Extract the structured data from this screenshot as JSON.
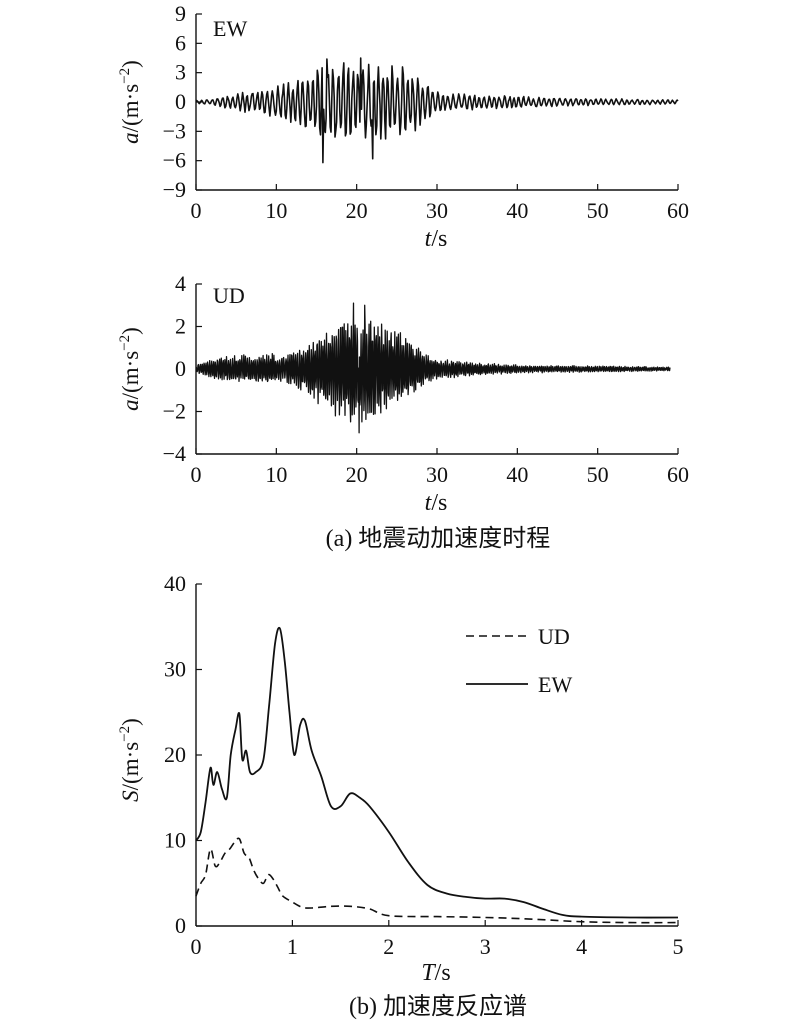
{
  "chart_data": [
    {
      "type": "line",
      "panel": "EW",
      "xlabel": "t/s",
      "ylabel": "a/(m·s⁻²)",
      "xlim": [
        0,
        60
      ],
      "ylim": [
        -9,
        9
      ],
      "xticks": [
        0,
        10,
        20,
        30,
        40,
        50,
        60
      ],
      "yticks": [
        9,
        6,
        3,
        0,
        -3,
        -6,
        -9
      ],
      "envelope": [
        [
          0,
          0.15
        ],
        [
          2,
          0.3
        ],
        [
          5,
          0.9
        ],
        [
          9,
          1.5
        ],
        [
          12,
          2.2
        ],
        [
          14,
          3.2
        ],
        [
          16,
          4.4
        ],
        [
          19,
          4.5
        ],
        [
          22,
          4.1
        ],
        [
          25,
          3.9
        ],
        [
          27,
          3.6
        ],
        [
          29,
          1.8
        ],
        [
          31,
          1.0
        ],
        [
          35,
          0.8
        ],
        [
          40,
          0.6
        ],
        [
          45,
          0.45
        ],
        [
          50,
          0.35
        ],
        [
          55,
          0.3
        ],
        [
          60,
          0.2
        ]
      ],
      "peaks": [
        {
          "t": 15.8,
          "a": -6.2
        },
        {
          "t": 16.3,
          "a": 4.4
        },
        {
          "t": 20.5,
          "a": 4.5
        },
        {
          "t": 22.0,
          "a": -5.8
        }
      ]
    },
    {
      "type": "line",
      "panel": "UD",
      "xlabel": "t/s",
      "ylabel": "a/(m·s⁻²)",
      "xlim": [
        0,
        60
      ],
      "ylim": [
        -4,
        4
      ],
      "xticks": [
        0,
        10,
        20,
        30,
        40,
        50,
        60
      ],
      "yticks": [
        4,
        2,
        0,
        -2,
        -4
      ],
      "envelope": [
        [
          0,
          0.2
        ],
        [
          3,
          0.6
        ],
        [
          8,
          0.8
        ],
        [
          11,
          0.7
        ],
        [
          14,
          1.3
        ],
        [
          16,
          1.9
        ],
        [
          19,
          2.6
        ],
        [
          21,
          3.0
        ],
        [
          23,
          2.3
        ],
        [
          26,
          1.6
        ],
        [
          28,
          0.9
        ],
        [
          30,
          0.5
        ],
        [
          35,
          0.3
        ],
        [
          40,
          0.2
        ],
        [
          50,
          0.15
        ],
        [
          59,
          0.1
        ]
      ],
      "peaks": [
        {
          "t": 19.6,
          "a": 3.1
        },
        {
          "t": 20.3,
          "a": -3.0
        },
        {
          "t": 21.0,
          "a": 3.0
        }
      ]
    },
    {
      "type": "line",
      "xlabel": "T/s",
      "ylabel": "S/(m·s⁻²)",
      "xlim": [
        0,
        5
      ],
      "ylim": [
        0,
        40
      ],
      "xticks": [
        0,
        1,
        2,
        3,
        4,
        5
      ],
      "yticks": [
        0,
        10,
        20,
        30,
        40
      ],
      "legend_position": "top-right",
      "series": [
        {
          "name": "UD",
          "style": "dashed",
          "x": [
            0,
            0.05,
            0.1,
            0.15,
            0.2,
            0.25,
            0.3,
            0.35,
            0.4,
            0.45,
            0.5,
            0.55,
            0.6,
            0.65,
            0.7,
            0.75,
            0.8,
            0.85,
            0.9,
            1.0,
            1.1,
            1.2,
            1.4,
            1.6,
            1.8,
            2.0,
            2.5,
            3.0,
            3.5,
            4.0,
            4.5,
            5.0
          ],
          "values": [
            3.5,
            5.0,
            6.0,
            9.0,
            7.0,
            7.5,
            8.5,
            9.0,
            9.8,
            10.2,
            8.5,
            8.0,
            6.5,
            5.5,
            5.0,
            6.0,
            5.5,
            4.5,
            3.5,
            2.8,
            2.2,
            2.1,
            2.3,
            2.3,
            2.0,
            1.2,
            1.1,
            1.0,
            0.8,
            0.5,
            0.4,
            0.4
          ]
        },
        {
          "name": "EW",
          "style": "solid",
          "x": [
            0,
            0.05,
            0.1,
            0.15,
            0.18,
            0.22,
            0.27,
            0.32,
            0.36,
            0.41,
            0.45,
            0.48,
            0.52,
            0.56,
            0.62,
            0.7,
            0.76,
            0.82,
            0.87,
            0.92,
            0.97,
            1.02,
            1.08,
            1.13,
            1.2,
            1.3,
            1.4,
            1.5,
            1.6,
            1.7,
            1.8,
            2.0,
            2.2,
            2.4,
            2.6,
            2.8,
            3.0,
            3.2,
            3.4,
            3.6,
            3.8,
            4.0,
            4.5,
            5.0
          ],
          "values": [
            10.0,
            11.0,
            14.5,
            18.5,
            16.5,
            18.0,
            16.0,
            15.0,
            20.0,
            23.0,
            24.8,
            19.5,
            20.5,
            18.0,
            18.0,
            19.5,
            26.0,
            33.0,
            34.8,
            31.0,
            25.0,
            20.0,
            23.5,
            24.0,
            20.5,
            17.5,
            14.0,
            14.0,
            15.5,
            15.0,
            14.0,
            11.0,
            7.5,
            4.8,
            3.8,
            3.4,
            3.2,
            3.2,
            2.8,
            2.0,
            1.3,
            1.1,
            1.0,
            1.0
          ]
        }
      ]
    }
  ],
  "labels": {
    "ew_tag": "EW",
    "ud_tag": "UD",
    "caption_a": "(a) 地震动加速度时程",
    "caption_b": "(b) 加速度反应谱",
    "legend_ud": "UD",
    "legend_ew": "EW"
  }
}
